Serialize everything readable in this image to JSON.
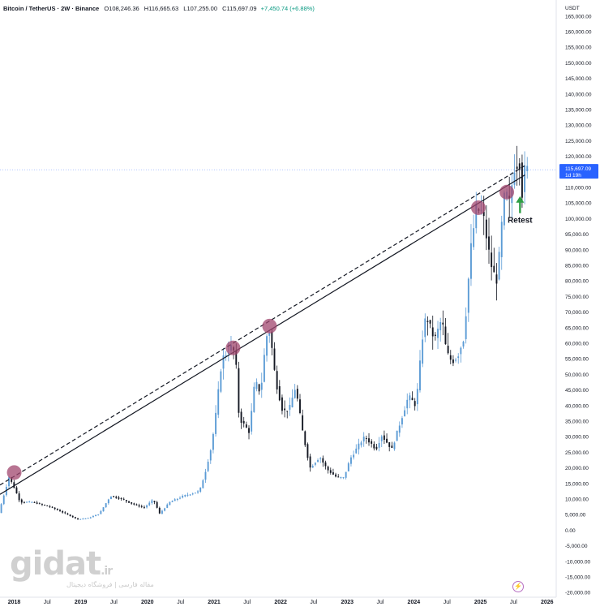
{
  "legend": {
    "symbol": "Bitcoin / TetherUS · 2W · Binance",
    "open_label": "O",
    "open": "108,246.36",
    "high_label": "H",
    "high": "116,665.63",
    "low_label": "L",
    "low": "107,255.00",
    "close_label": "C",
    "close": "115,697.09",
    "change": "+7,450.74 (+6.88%)"
  },
  "price_tag": {
    "price": "115,697.09",
    "countdown": "1d 19h"
  },
  "watermark": {
    "logo": "gidat",
    "tld": ".ir",
    "subtitle": "مقاله فارسی | فروشگاه دیجیتال"
  },
  "annotation": {
    "text": "Retest"
  },
  "colors": {
    "up": "#5b9bd5",
    "down": "#131722",
    "highlight": "#a0456e",
    "arrow": "#2e9e44",
    "price_tag": "#2962ff"
  },
  "chart_data": {
    "type": "candlestick",
    "title": "",
    "currency_label": "USDT",
    "ylim": [
      -21000,
      166000
    ],
    "y_ticks": [
      "165,000.00",
      "160,000.00",
      "155,000.00",
      "150,000.00",
      "145,000.00",
      "140,000.00",
      "135,000.00",
      "130,000.00",
      "125,000.00",
      "120,000.00",
      "115,000.00",
      "110,000.00",
      "105,000.00",
      "100,000.00",
      "95,000.00",
      "90,000.00",
      "85,000.00",
      "80,000.00",
      "75,000.00",
      "70,000.00",
      "65,000.00",
      "60,000.00",
      "55,000.00",
      "50,000.00",
      "45,000.00",
      "40,000.00",
      "35,000.00",
      "30,000.00",
      "25,000.00",
      "20,000.00",
      "15,000.00",
      "10,000.00",
      "5,000.00",
      "0.00",
      "-5,000.00",
      "-10,000.00",
      "-15,000.00",
      "-20,000.00"
    ],
    "y_tick_values": [
      165000,
      160000,
      155000,
      150000,
      145000,
      140000,
      135000,
      130000,
      125000,
      120000,
      115000,
      110000,
      105000,
      100000,
      95000,
      90000,
      85000,
      80000,
      75000,
      70000,
      65000,
      60000,
      55000,
      50000,
      45000,
      40000,
      35000,
      30000,
      25000,
      20000,
      15000,
      10000,
      5000,
      0,
      -5000,
      -10000,
      -15000,
      -20000
    ],
    "x_ticks": [
      "2018",
      "Jul",
      "2019",
      "Jul",
      "2020",
      "Jul",
      "2021",
      "Jul",
      "2022",
      "Jul",
      "2023",
      "Jul",
      "2024",
      "Jul",
      "2025",
      "Jul",
      "2026"
    ],
    "x_tick_dates": [
      "2018-01-01",
      "2018-07-01",
      "2019-01-01",
      "2019-07-01",
      "2020-01-01",
      "2020-07-01",
      "2021-01-01",
      "2021-07-01",
      "2022-01-01",
      "2022-07-01",
      "2023-01-01",
      "2023-07-01",
      "2024-01-01",
      "2024-07-01",
      "2025-01-01",
      "2025-07-01",
      "2026-01-01"
    ],
    "x_range": [
      "2017-10-15",
      "2026-02-20"
    ],
    "trendline": {
      "start": [
        "2017-10-15",
        11500
      ],
      "end": [
        "2025-09-01",
        114000
      ],
      "style": "solid"
    },
    "trendline_offset": {
      "start": [
        "2017-10-15",
        14500
      ],
      "end": [
        "2025-09-01",
        117000
      ],
      "style": "dashed"
    },
    "touch_points": [
      {
        "date": "2018-01-01",
        "value": 18500
      },
      {
        "date": "2021-04-15",
        "value": 58500
      },
      {
        "date": "2021-11-01",
        "value": 65500
      },
      {
        "date": "2024-12-20",
        "value": 103500
      },
      {
        "date": "2025-05-25",
        "value": 108500
      }
    ],
    "retest_point": {
      "date": "2025-08-10",
      "value": 108000
    },
    "current_price": 115697.09,
    "price_anchors": [
      [
        "2017-10-15",
        5500
      ],
      [
        "2017-12-10",
        17000
      ],
      [
        "2018-01-05",
        14000
      ],
      [
        "2018-02-10",
        9000
      ],
      [
        "2018-04-20",
        9000
      ],
      [
        "2018-08-01",
        7300
      ],
      [
        "2018-11-15",
        4500
      ],
      [
        "2018-12-20",
        3500
      ],
      [
        "2019-02-20",
        3900
      ],
      [
        "2019-04-20",
        5300
      ],
      [
        "2019-06-20",
        11000
      ],
      [
        "2019-08-20",
        10000
      ],
      [
        "2019-10-20",
        8400
      ],
      [
        "2019-12-20",
        7200
      ],
      [
        "2020-02-10",
        9800
      ],
      [
        "2020-03-15",
        5300
      ],
      [
        "2020-05-10",
        9000
      ],
      [
        "2020-07-25",
        11000
      ],
      [
        "2020-10-20",
        12500
      ],
      [
        "2020-11-20",
        18500
      ],
      [
        "2020-12-25",
        27000
      ],
      [
        "2021-01-15",
        36000
      ],
      [
        "2021-02-20",
        55000
      ],
      [
        "2021-04-15",
        59000
      ],
      [
        "2021-05-05",
        56000
      ],
      [
        "2021-05-25",
        36000
      ],
      [
        "2021-07-20",
        31500
      ],
      [
        "2021-08-20",
        48000
      ],
      [
        "2021-09-20",
        44000
      ],
      [
        "2021-10-20",
        62000
      ],
      [
        "2021-11-10",
        64000
      ],
      [
        "2021-12-10",
        48500
      ],
      [
        "2022-01-20",
        38000
      ],
      [
        "2022-02-25",
        39000
      ],
      [
        "2022-03-30",
        46000
      ],
      [
        "2022-05-10",
        31000
      ],
      [
        "2022-06-18",
        20000
      ],
      [
        "2022-08-10",
        23500
      ],
      [
        "2022-09-20",
        19500
      ],
      [
        "2022-11-10",
        17000
      ],
      [
        "2022-12-20",
        16800
      ],
      [
        "2023-01-25",
        23000
      ],
      [
        "2023-03-20",
        28000
      ],
      [
        "2023-04-15",
        30000
      ],
      [
        "2023-06-15",
        26000
      ],
      [
        "2023-07-15",
        30500
      ],
      [
        "2023-09-10",
        26000
      ],
      [
        "2023-10-25",
        34500
      ],
      [
        "2023-12-10",
        43000
      ],
      [
        "2024-01-20",
        40000
      ],
      [
        "2024-02-25",
        62000
      ],
      [
        "2024-03-15",
        69000
      ],
      [
        "2024-05-01",
        61000
      ],
      [
        "2024-06-10",
        68000
      ],
      [
        "2024-07-05",
        57000
      ],
      [
        "2024-08-05",
        54000
      ],
      [
        "2024-09-05",
        56000
      ],
      [
        "2024-10-10",
        62000
      ],
      [
        "2024-11-15",
        90000
      ],
      [
        "2024-12-15",
        103000
      ],
      [
        "2025-01-20",
        102000
      ],
      [
        "2025-02-20",
        90000
      ],
      [
        "2025-03-15",
        83000
      ],
      [
        "2025-04-10",
        80000
      ],
      [
        "2025-05-01",
        96000
      ],
      [
        "2025-05-22",
        109000
      ],
      [
        "2025-06-15",
        105000
      ],
      [
        "2025-07-15",
        117500
      ],
      [
        "2025-08-10",
        118000
      ],
      [
        "2025-08-24",
        108500
      ],
      [
        "2025-09-08",
        115697
      ]
    ]
  }
}
